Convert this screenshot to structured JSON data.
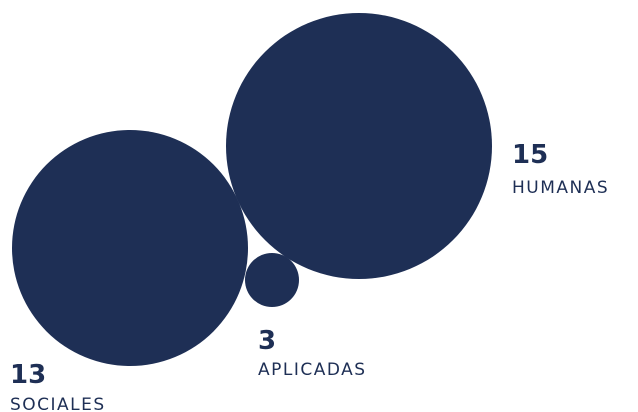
{
  "chart_data": {
    "type": "bubble",
    "title": "",
    "colors": {
      "bubble": "#1e2f55",
      "value_text": "#1e2f55",
      "label_text": "#1e2f55"
    },
    "series": [
      {
        "name": "HUMANAS",
        "value": 15
      },
      {
        "name": "SOCIALES",
        "value": 13
      },
      {
        "name": "APLICADAS",
        "value": 3
      }
    ]
  }
}
